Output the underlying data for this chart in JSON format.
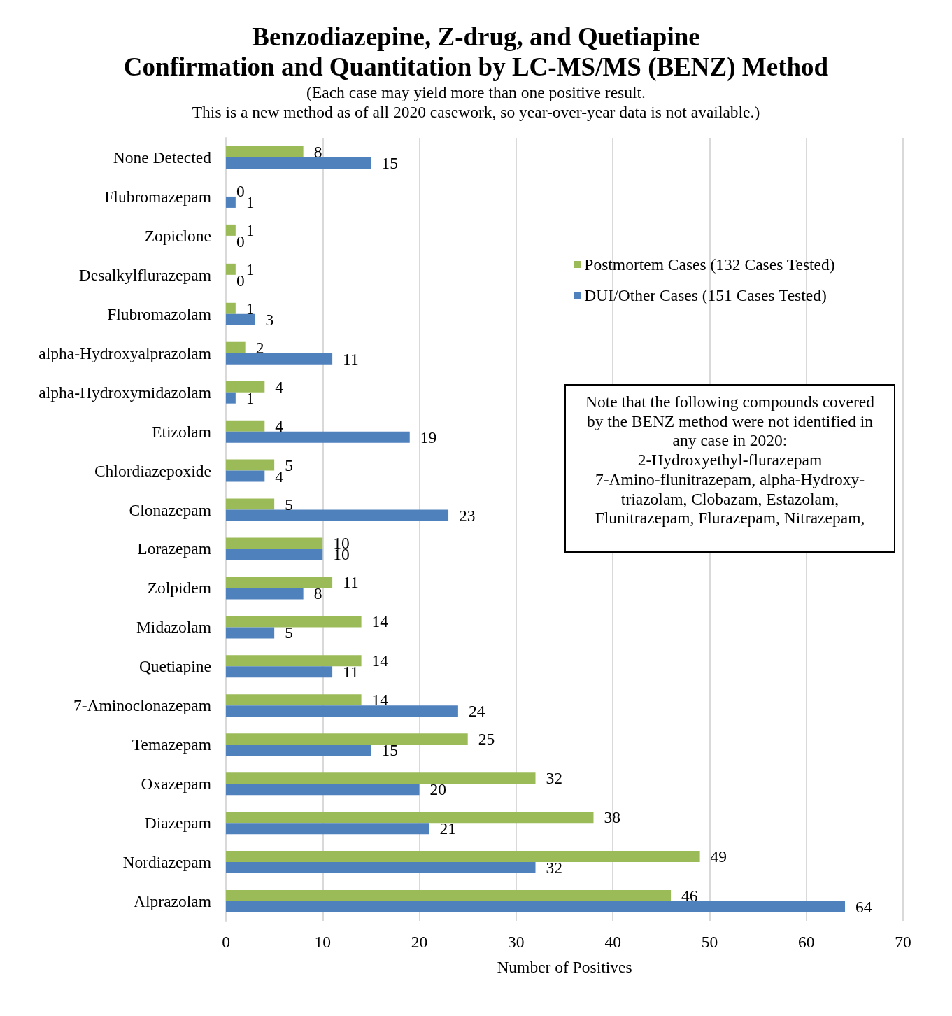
{
  "chart_data": {
    "type": "bar",
    "orientation": "horizontal",
    "title": "Benzodiazepine, Z-drug, and Quetiapine\nConfirmation and Quantitation by LC-MS/MS (BENZ) Method",
    "subtitle": "(Each case may yield more than one positive result.\nThis is a new method as of all 2020 casework, so year-over-year data is not available.)",
    "xlabel": "Number of Positives",
    "categories": [
      "None Detected",
      "Flubromazepam",
      "Zopiclone",
      "Desalkylflurazepam",
      "Flubromazolam",
      "alpha-Hydroxyalprazolam",
      "alpha-Hydroxymidazolam",
      "Etizolam",
      "Chlordiazepoxide",
      "Clonazepam",
      "Lorazepam",
      "Zolpidem",
      "Midazolam",
      "Quetiapine",
      "7-Aminoclonazepam",
      "Temazepam",
      "Oxazepam",
      "Diazepam",
      "Nordiazepam",
      "Alprazolam"
    ],
    "series": [
      {
        "name": "Postmortem Cases (132 Cases Tested)",
        "color": "#9bbb59",
        "values": [
          8,
          0,
          1,
          1,
          1,
          2,
          4,
          4,
          5,
          5,
          10,
          11,
          14,
          14,
          14,
          25,
          32,
          38,
          49,
          46
        ]
      },
      {
        "name": "DUI/Other Cases (151 Cases Tested)",
        "color": "#4f81bd",
        "values": [
          15,
          1,
          0,
          0,
          3,
          11,
          1,
          19,
          4,
          23,
          10,
          8,
          5,
          11,
          24,
          15,
          20,
          21,
          32,
          64
        ]
      }
    ],
    "xlim": [
      0,
      70
    ],
    "xticks": [
      0,
      10,
      20,
      30,
      40,
      50,
      60,
      70
    ],
    "grid": "x",
    "legend": "top right",
    "data_labels": true,
    "annotations": [
      "Note that the following compounds covered\nby the BENZ method were not identified in\nany case in 2020:\n2-Hydroxyethyl-flurazepam\n7-Amino-flunitrazepam, alpha-Hydroxy-\ntriazolam, Clobazam, Estazolam,\nFlunitrazepam, Flurazepam, Nitrazepam,"
    ]
  }
}
